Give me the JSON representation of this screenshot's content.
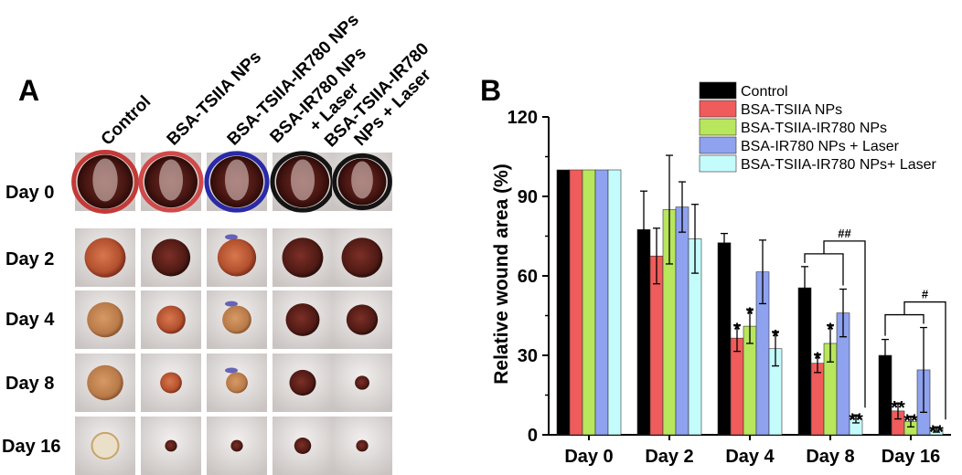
{
  "panel_a": {
    "label": "A",
    "columns": [
      "Control",
      "BSA-TSIIA NPs",
      "BSA-TSIIA-IR780 NPs",
      "BSA-IR780 NPs + Laser",
      "BSA-TSIIA-IR780 NPs + Laser"
    ],
    "rows": [
      "Day 0",
      "Day 2",
      "Day 4",
      "Day 8",
      "Day 16"
    ]
  },
  "chart_data": {
    "panel_label": "B",
    "type": "bar",
    "title": "",
    "xlabel": "",
    "ylabel": "Relative wound area (%)",
    "ylim": [
      0,
      120
    ],
    "yticks": [
      0,
      30,
      60,
      90,
      120
    ],
    "categories": [
      "Day 0",
      "Day 2",
      "Day 4",
      "Day 8",
      "Day 16"
    ],
    "series": [
      {
        "name": "Control",
        "color": "#000000",
        "values": [
          100,
          77.5,
          72.5,
          55.5,
          30
        ],
        "errors": [
          0,
          14.5,
          3.5,
          8,
          6
        ],
        "marks": [
          "",
          "",
          "",
          "",
          ""
        ]
      },
      {
        "name": "BSA-TSIIA NPs",
        "color": "#f05b5b",
        "values": [
          100,
          67.5,
          36.5,
          27,
          9
        ],
        "errors": [
          0,
          10.5,
          5,
          3.5,
          3
        ],
        "marks": [
          "",
          "",
          "*",
          "*",
          "**"
        ]
      },
      {
        "name": "BSA-TSIIA-IR780 NPs",
        "color": "#b8e65c",
        "values": [
          100,
          85,
          41,
          34.5,
          5
        ],
        "errors": [
          0,
          20.5,
          6.5,
          7,
          2
        ],
        "marks": [
          "",
          "",
          "*",
          "*",
          "**"
        ]
      },
      {
        "name": "BSA-IR780 NPs + Laser",
        "color": "#8ea2ef",
        "values": [
          100,
          86,
          61.5,
          46,
          24.5
        ],
        "errors": [
          0,
          9.5,
          12,
          9,
          16
        ],
        "marks": [
          "",
          "",
          "",
          "",
          ""
        ]
      },
      {
        "name": "BSA-TSIIA-IR780 NPs+ Laser",
        "color": "#c4fbfb",
        "values": [
          100,
          74,
          32.5,
          6,
          2
        ],
        "errors": [
          0,
          13,
          6.5,
          1.5,
          1
        ],
        "marks": [
          "",
          "",
          "*",
          "**",
          "**"
        ]
      }
    ],
    "annotations": [
      {
        "category": "Day 8",
        "text": "##"
      },
      {
        "category": "Day 16",
        "text": "#"
      }
    ]
  }
}
